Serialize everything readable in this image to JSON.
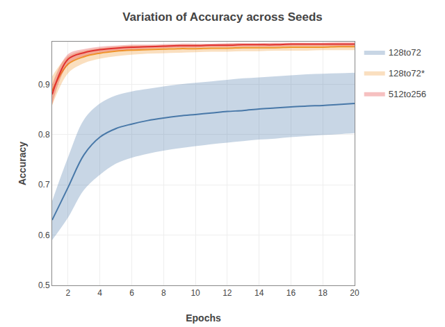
{
  "chart_data": {
    "type": "line",
    "title": "Variation of Accuracy across Seeds",
    "xlabel": "Epochs",
    "ylabel": "Accuracy",
    "x": [
      1,
      2,
      3,
      4,
      5,
      6,
      7,
      8,
      9,
      10,
      11,
      12,
      13,
      14,
      15,
      16,
      17,
      18,
      19,
      20
    ],
    "series": [
      {
        "name": "128to72",
        "color": "#4878a8",
        "values": [
          0.63,
          0.695,
          0.76,
          0.795,
          0.812,
          0.821,
          0.828,
          0.833,
          0.837,
          0.84,
          0.843,
          0.846,
          0.848,
          0.851,
          0.853,
          0.855,
          0.857,
          0.858,
          0.86,
          0.862
        ],
        "lower": [
          0.59,
          0.635,
          0.69,
          0.72,
          0.742,
          0.754,
          0.762,
          0.768,
          0.773,
          0.777,
          0.781,
          0.784,
          0.787,
          0.79,
          0.792,
          0.795,
          0.797,
          0.799,
          0.801,
          0.803
        ],
        "upper": [
          0.668,
          0.755,
          0.83,
          0.862,
          0.878,
          0.886,
          0.891,
          0.896,
          0.9,
          0.903,
          0.906,
          0.909,
          0.912,
          0.914,
          0.916,
          0.918,
          0.92,
          0.921,
          0.922,
          0.923
        ]
      },
      {
        "name": "128to72*",
        "color": "#f0962a",
        "values": [
          0.887,
          0.94,
          0.955,
          0.962,
          0.966,
          0.968,
          0.969,
          0.97,
          0.971,
          0.971,
          0.972,
          0.972,
          0.973,
          0.973,
          0.973,
          0.974,
          0.974,
          0.974,
          0.975,
          0.975
        ],
        "lower": [
          0.858,
          0.922,
          0.942,
          0.951,
          0.956,
          0.959,
          0.961,
          0.962,
          0.963,
          0.964,
          0.965,
          0.965,
          0.966,
          0.966,
          0.967,
          0.967,
          0.967,
          0.968,
          0.968,
          0.968
        ],
        "upper": [
          0.916,
          0.956,
          0.967,
          0.972,
          0.975,
          0.977,
          0.977,
          0.978,
          0.979,
          0.979,
          0.979,
          0.98,
          0.98,
          0.98,
          0.98,
          0.981,
          0.981,
          0.981,
          0.981,
          0.981
        ]
      },
      {
        "name": "512to256",
        "color": "#e03030",
        "values": [
          0.88,
          0.95,
          0.963,
          0.969,
          0.972,
          0.974,
          0.975,
          0.976,
          0.977,
          0.977,
          0.978,
          0.978,
          0.979,
          0.979,
          0.979,
          0.98,
          0.98,
          0.98,
          0.98,
          0.98
        ],
        "lower": [
          0.86,
          0.94,
          0.956,
          0.963,
          0.967,
          0.969,
          0.971,
          0.972,
          0.973,
          0.973,
          0.974,
          0.974,
          0.975,
          0.975,
          0.975,
          0.976,
          0.976,
          0.976,
          0.976,
          0.976
        ],
        "upper": [
          0.9,
          0.96,
          0.97,
          0.975,
          0.977,
          0.979,
          0.979,
          0.98,
          0.981,
          0.981,
          0.981,
          0.982,
          0.982,
          0.982,
          0.983,
          0.983,
          0.983,
          0.983,
          0.984,
          0.984
        ]
      }
    ],
    "xlim": [
      1,
      20
    ],
    "ylim": [
      0.5,
      0.985
    ],
    "xticks": [
      2,
      4,
      6,
      8,
      10,
      12,
      14,
      16,
      18,
      20
    ],
    "yticks": [
      0.5,
      0.6,
      0.7,
      0.8,
      0.9
    ],
    "grid": true,
    "legend": "right"
  }
}
